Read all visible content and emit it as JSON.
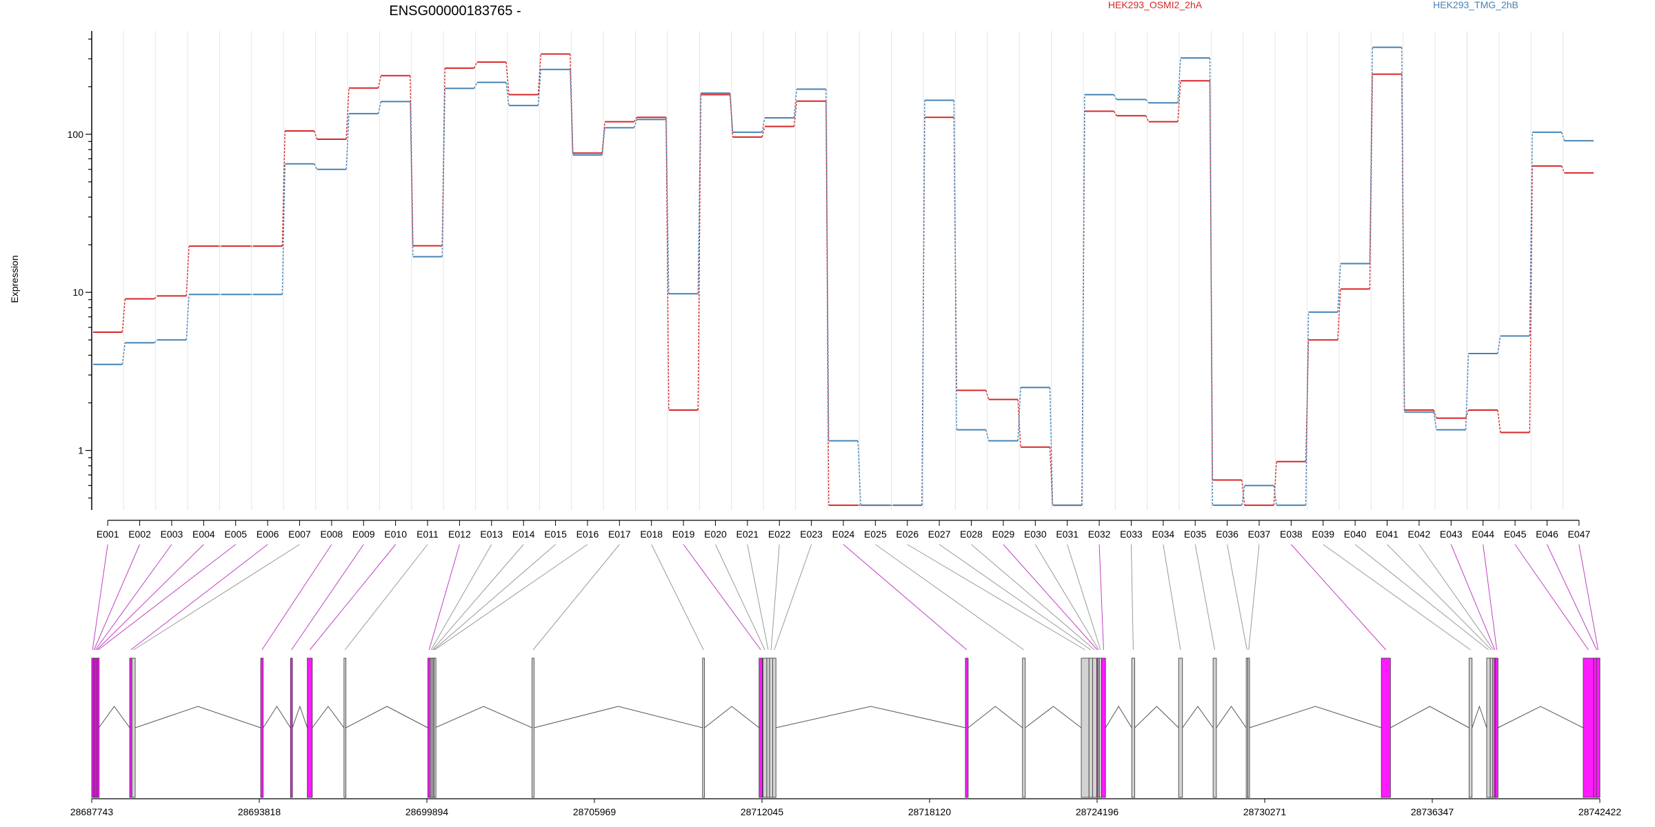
{
  "chart_data": {
    "type": "line",
    "title": "ENSG00000183765 -",
    "ylabel": "Expression",
    "yscale": "log",
    "ylim": [
      0.42,
      450
    ],
    "yticks": [
      1,
      10,
      100
    ],
    "ytick_labels": [
      "1",
      "10",
      "100"
    ],
    "categories": [
      "E001",
      "E002",
      "E003",
      "E004",
      "E005",
      "E006",
      "E007",
      "E008",
      "E009",
      "E010",
      "E011",
      "E012",
      "E013",
      "E014",
      "E015",
      "E016",
      "E017",
      "E018",
      "E019",
      "E020",
      "E021",
      "E022",
      "E023",
      "E024",
      "E025",
      "E026",
      "E027",
      "E028",
      "E029",
      "E030",
      "E031",
      "E032",
      "E033",
      "E034",
      "E035",
      "E036",
      "E037",
      "E038",
      "E039",
      "E040",
      "E041",
      "E042",
      "E043",
      "E044",
      "E045",
      "E046",
      "E047"
    ],
    "series": [
      {
        "name": "HEK293_OSMI2_2hA",
        "color": "#d62728",
        "values": [
          5.6,
          9.1,
          9.5,
          19.6,
          19.6,
          19.6,
          105,
          93,
          196,
          235,
          19.7,
          262,
          286,
          178,
          322,
          76,
          120,
          128,
          1.8,
          178,
          96,
          112,
          162,
          0.45,
          0.45,
          0.45,
          128,
          2.4,
          2.1,
          1.05,
          0.45,
          140,
          131,
          120,
          218,
          0.65,
          0.45,
          0.85,
          5.0,
          10.5,
          240,
          1.8,
          1.6,
          1.8,
          1.3,
          63,
          57
        ]
      },
      {
        "name": "HEK293_TMG_2hB",
        "color": "#4682b4",
        "values": [
          3.5,
          4.8,
          5.0,
          9.7,
          9.7,
          9.7,
          65,
          60,
          135,
          161,
          16.8,
          195,
          213,
          152,
          257,
          74,
          110,
          124,
          9.8,
          182,
          103,
          127,
          193,
          1.15,
          0.45,
          0.45,
          164,
          1.35,
          1.15,
          2.5,
          0.45,
          178,
          166,
          158,
          304,
          0.45,
          0.6,
          0.45,
          7.5,
          15.2,
          355,
          1.75,
          1.35,
          4.1,
          5.3,
          103,
          91
        ]
      }
    ],
    "legend": [
      "HEK293_OSMI2_2hA",
      "HEK293_TMG_2hB"
    ],
    "legend_position": "top",
    "grid": "vertical",
    "gene_model": {
      "start": 28687743,
      "end": 28742422,
      "ticks": [
        "28687743",
        "28693818",
        "28699894",
        "28705969",
        "28712045",
        "28718120",
        "28724196",
        "28730271",
        "28736347",
        "28742422"
      ],
      "exon_fill_significant": "#ff1aff",
      "exon_fill_normal": "#d3d3d3",
      "exons": [
        {
          "id": "E001",
          "start": 28687743,
          "end": 28687800,
          "significant": true
        },
        {
          "id": "E002",
          "start": 28687800,
          "end": 28687850,
          "significant": true
        },
        {
          "id": "E003",
          "start": 28687850,
          "end": 28687900,
          "significant": true
        },
        {
          "id": "E004",
          "start": 28687900,
          "end": 28687950,
          "significant": true
        },
        {
          "id": "E005",
          "start": 28687950,
          "end": 28688000,
          "significant": true
        },
        {
          "id": "E006",
          "start": 28689120,
          "end": 28689200,
          "significant": true
        },
        {
          "id": "E007",
          "start": 28689200,
          "end": 28689320,
          "significant": false
        },
        {
          "id": "E008",
          "start": 28693870,
          "end": 28693960,
          "significant": true
        },
        {
          "id": "E009",
          "start": 28694950,
          "end": 28695020,
          "significant": true
        },
        {
          "id": "E010",
          "start": 28695560,
          "end": 28695740,
          "significant": true
        },
        {
          "id": "E011",
          "start": 28696890,
          "end": 28696960,
          "significant": false
        },
        {
          "id": "E012",
          "start": 28699930,
          "end": 28700020,
          "significant": true
        },
        {
          "id": "E013",
          "start": 28700020,
          "end": 28700070,
          "significant": false
        },
        {
          "id": "E014",
          "start": 28700070,
          "end": 28700120,
          "significant": false
        },
        {
          "id": "E015",
          "start": 28700120,
          "end": 28700160,
          "significant": false
        },
        {
          "id": "E016",
          "start": 28700160,
          "end": 28700190,
          "significant": false
        },
        {
          "id": "E017",
          "start": 28703710,
          "end": 28703780,
          "significant": false
        },
        {
          "id": "E018",
          "start": 28709890,
          "end": 28709960,
          "significant": false
        },
        {
          "id": "E019",
          "start": 28711940,
          "end": 28712060,
          "significant": true
        },
        {
          "id": "E020",
          "start": 28712080,
          "end": 28712220,
          "significant": false
        },
        {
          "id": "E021",
          "start": 28712220,
          "end": 28712320,
          "significant": false
        },
        {
          "id": "E022",
          "start": 28712320,
          "end": 28712430,
          "significant": false
        },
        {
          "id": "E023",
          "start": 28712430,
          "end": 28712550,
          "significant": false
        },
        {
          "id": "E024",
          "start": 28719420,
          "end": 28719520,
          "significant": true
        },
        {
          "id": "E025",
          "start": 28721490,
          "end": 28721590,
          "significant": false
        },
        {
          "id": "E026",
          "start": 28723620,
          "end": 28723900,
          "significant": false
        },
        {
          "id": "E027",
          "start": 28723900,
          "end": 28724030,
          "significant": false
        },
        {
          "id": "E028",
          "start": 28724030,
          "end": 28724180,
          "significant": false
        },
        {
          "id": "E029",
          "start": 28724180,
          "end": 28724230,
          "significant": true
        },
        {
          "id": "E030",
          "start": 28724230,
          "end": 28724280,
          "significant": false
        },
        {
          "id": "E031",
          "start": 28724280,
          "end": 28724360,
          "significant": false
        },
        {
          "id": "E032",
          "start": 28724360,
          "end": 28724500,
          "significant": true
        },
        {
          "id": "E033",
          "start": 28725450,
          "end": 28725560,
          "significant": false
        },
        {
          "id": "E034",
          "start": 28727150,
          "end": 28727290,
          "significant": false
        },
        {
          "id": "E035",
          "start": 28728400,
          "end": 28728520,
          "significant": false
        },
        {
          "id": "E036",
          "start": 28729600,
          "end": 28729660,
          "significant": false
        },
        {
          "id": "E037",
          "start": 28729660,
          "end": 28729720,
          "significant": false
        },
        {
          "id": "E038",
          "start": 28734500,
          "end": 28734830,
          "significant": true
        },
        {
          "id": "E039",
          "start": 28737680,
          "end": 28737790,
          "significant": false
        },
        {
          "id": "E040",
          "start": 28738320,
          "end": 28738450,
          "significant": false
        },
        {
          "id": "E041",
          "start": 28738450,
          "end": 28738540,
          "significant": false
        },
        {
          "id": "E042",
          "start": 28738540,
          "end": 28738590,
          "significant": false
        },
        {
          "id": "E043",
          "start": 28738590,
          "end": 28738640,
          "significant": true
        },
        {
          "id": "E044",
          "start": 28738640,
          "end": 28738730,
          "significant": true
        },
        {
          "id": "E045",
          "start": 28741820,
          "end": 28742200,
          "significant": true
        },
        {
          "id": "E046",
          "start": 28742200,
          "end": 28742422,
          "significant": true
        },
        {
          "id": "E047",
          "start": 28742300,
          "end": 28742422,
          "significant": true
        }
      ],
      "introns": [
        [
          28688000,
          28689120
        ],
        [
          28689320,
          28693870
        ],
        [
          28693960,
          28694950
        ],
        [
          28695020,
          28695560
        ],
        [
          28695740,
          28696890
        ],
        [
          28696960,
          28699930
        ],
        [
          28700190,
          28703710
        ],
        [
          28703780,
          28709890
        ],
        [
          28709960,
          28711940
        ],
        [
          28712550,
          28719420
        ],
        [
          28719520,
          28721490
        ],
        [
          28721590,
          28723620
        ],
        [
          28724500,
          28725450
        ],
        [
          28725560,
          28727150
        ],
        [
          28727290,
          28728400
        ],
        [
          28728520,
          28729600
        ],
        [
          28729720,
          28734500
        ],
        [
          28734830,
          28737680
        ],
        [
          28737790,
          28738320
        ],
        [
          28738730,
          28741820
        ]
      ]
    }
  }
}
